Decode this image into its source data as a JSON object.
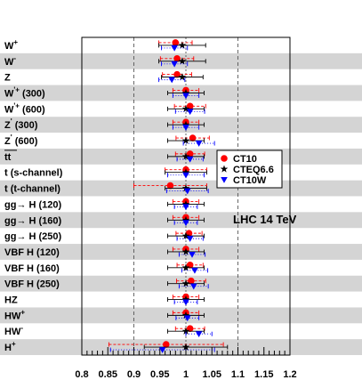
{
  "chart_data": {
    "type": "scatter",
    "orientation": "horizontal",
    "title": "",
    "xlabel": "",
    "ylabel": "",
    "xlim": [
      0.8,
      1.2
    ],
    "xticks": [
      "0.8",
      "0.85",
      "0.9",
      "0.95",
      "1",
      "1.05",
      "1.1",
      "1.15",
      "1.2"
    ],
    "reference_lines": [
      0.9,
      1.0,
      1.1
    ],
    "annotation": "LHC 14 TeV",
    "legend_placement": "right-middle",
    "grid": false,
    "categories": [
      "W+",
      "W-",
      "Z",
      "W'+ (300)",
      "W'+ (600)",
      "Z' (300)",
      "Z' (600)",
      "tt",
      "t (s-channel)",
      "t (t-channel)",
      "gg→ H (120)",
      "gg→ H (160)",
      "gg→ H (250)",
      "VBF H (120)",
      "VBF H (160)",
      "VBF H (250)",
      "HZ",
      "HW+",
      "HW-",
      "H+"
    ],
    "category_labels": [
      {
        "base": "W",
        "sup": "+"
      },
      {
        "base": "W",
        "sup": "-"
      },
      {
        "base": "Z",
        "sup": ""
      },
      {
        "base": "W",
        "sup": "'+",
        "tail": " (300)"
      },
      {
        "base": "W",
        "sup": "'+",
        "tail": " (600)"
      },
      {
        "base": "Z",
        "sup": "'",
        "tail": " (300)"
      },
      {
        "base": "Z",
        "sup": "'",
        "tail": " (600)"
      },
      {
        "base": "tt",
        "sup": "",
        "overline": true
      },
      {
        "base": "t (s-channel)",
        "sup": ""
      },
      {
        "base": "t (t-channel)",
        "sup": ""
      },
      {
        "base": "gg→ H (120)",
        "sup": ""
      },
      {
        "base": "gg→ H (160)",
        "sup": ""
      },
      {
        "base": "gg→ H (250)",
        "sup": ""
      },
      {
        "base": "VBF H (120)",
        "sup": ""
      },
      {
        "base": "VBF H (160)",
        "sup": ""
      },
      {
        "base": "VBF H (250)",
        "sup": ""
      },
      {
        "base": "HZ",
        "sup": ""
      },
      {
        "base": "HW",
        "sup": "+"
      },
      {
        "base": "HW",
        "sup": "-"
      },
      {
        "base": "H",
        "sup": "+"
      }
    ],
    "series": [
      {
        "name": "CT10",
        "color": "#ff0000",
        "marker": "circle",
        "line_style": "dashed",
        "values": [
          0.98,
          0.983,
          0.983,
          1.0,
          1.008,
          1.0,
          1.013,
          1.008,
          1.0,
          0.97,
          1.0,
          1.0,
          1.006,
          1.0,
          1.008,
          1.01,
          1.0,
          1.0,
          1.008,
          0.962
        ],
        "err_low": [
          0.032,
          0.032,
          0.028,
          0.025,
          0.03,
          0.025,
          0.032,
          0.028,
          0.04,
          0.07,
          0.025,
          0.025,
          0.025,
          0.025,
          0.025,
          0.028,
          0.025,
          0.025,
          0.028,
          0.11
        ],
        "err_high": [
          0.032,
          0.032,
          0.028,
          0.025,
          0.03,
          0.025,
          0.032,
          0.028,
          0.04,
          0.07,
          0.025,
          0.025,
          0.025,
          0.025,
          0.025,
          0.028,
          0.025,
          0.025,
          0.028,
          0.11
        ]
      },
      {
        "name": "CTEQ6.6",
        "color": "#000000",
        "marker": "star",
        "line_style": "solid",
        "values": [
          0.993,
          0.993,
          0.993,
          1.0,
          1.0,
          1.0,
          1.0,
          1.0,
          1.0,
          1.0,
          1.0,
          1.0,
          1.0,
          1.0,
          1.0,
          1.0,
          1.0,
          1.0,
          1.0,
          1.0
        ],
        "err_low": [
          0.045,
          0.045,
          0.04,
          0.035,
          0.035,
          0.035,
          0.035,
          0.035,
          0.04,
          0.04,
          0.035,
          0.035,
          0.035,
          0.035,
          0.035,
          0.035,
          0.035,
          0.035,
          0.035,
          0.08
        ],
        "err_high": [
          0.045,
          0.045,
          0.04,
          0.035,
          0.035,
          0.035,
          0.035,
          0.035,
          0.04,
          0.04,
          0.035,
          0.035,
          0.035,
          0.035,
          0.035,
          0.035,
          0.035,
          0.035,
          0.035,
          0.08
        ]
      },
      {
        "name": "CT10W",
        "color": "#0000ff",
        "marker": "triangle-down",
        "line_style": "dotted",
        "values": [
          0.978,
          0.978,
          0.973,
          1.0,
          1.008,
          1.0,
          1.025,
          1.008,
          1.0,
          1.003,
          1.0,
          1.0,
          1.008,
          1.012,
          1.017,
          1.015,
          1.0,
          1.003,
          1.025,
          0.955
        ],
        "err_low": [
          0.025,
          0.025,
          0.025,
          0.025,
          0.028,
          0.025,
          0.03,
          0.025,
          0.035,
          0.04,
          0.022,
          0.022,
          0.025,
          0.025,
          0.025,
          0.028,
          0.022,
          0.022,
          0.025,
          0.1
        ],
        "err_high": [
          0.025,
          0.025,
          0.025,
          0.025,
          0.028,
          0.025,
          0.03,
          0.025,
          0.035,
          0.04,
          0.022,
          0.022,
          0.025,
          0.025,
          0.025,
          0.028,
          0.022,
          0.022,
          0.025,
          0.1
        ]
      }
    ]
  }
}
